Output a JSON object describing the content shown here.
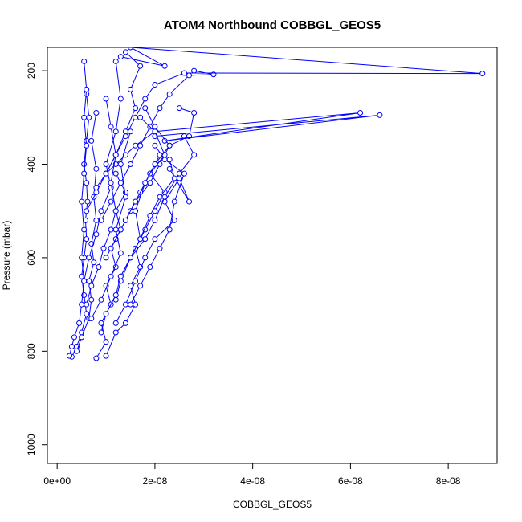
{
  "chart_data": {
    "type": "line",
    "title": "ATOM4 Northbound COBBGL_GEOS5",
    "xlabel": "COBBGL_GEOS5",
    "ylabel": "Pressure (mbar)",
    "xlim": [
      -2e-09,
      9e-08
    ],
    "ylim": [
      1040,
      150
    ],
    "y_reversed": true,
    "x_ticks": [
      0,
      2e-08,
      4e-08,
      6e-08,
      8e-08
    ],
    "x_tick_labels": [
      "0e+00",
      "2e-08",
      "4e-08",
      "6e-08",
      "8e-08"
    ],
    "y_ticks": [
      200,
      400,
      600,
      800,
      1000
    ],
    "y_tick_labels": [
      "200",
      "400",
      "600",
      "800",
      "1000"
    ],
    "grid": false,
    "marker": "open-circle",
    "series_color": "#0000ff",
    "series": [
      {
        "x": [
          3e-09,
          4e-09,
          5e-09,
          6e-09,
          5.5e-09,
          5e-09,
          5.5e-09,
          6e-09,
          5.8e-09,
          6.2e-09,
          6e-09,
          5.5e-09,
          6e-09,
          6.5e-09,
          6e-09
        ],
        "y": [
          812,
          790,
          760,
          720,
          680,
          640,
          600,
          560,
          520,
          480,
          440,
          400,
          350,
          300,
          250
        ]
      },
      {
        "x": [
          4e-09,
          5e-09,
          6.5e-09,
          7e-09,
          6.5e-09,
          7.5e-09,
          7e-09,
          8e-09,
          7.5e-09,
          8e-09,
          7e-09,
          8e-09
        ],
        "y": [
          800,
          770,
          730,
          690,
          650,
          610,
          570,
          520,
          470,
          410,
          350,
          290
        ]
      },
      {
        "x": [
          8e-09,
          1e-08,
          9e-09,
          1.1e-08,
          1e-08,
          1.2e-08,
          1.1e-08,
          1.3e-08,
          1.2e-08,
          1.4e-08,
          1.2e-08
        ],
        "y": [
          815,
          780,
          740,
          700,
          660,
          620,
          580,
          540,
          500,
          460,
          420
        ]
      },
      {
        "x": [
          1e-08,
          1.2e-08,
          1.4e-08,
          1.6e-08,
          1.5e-08,
          1.7e-08,
          1.6e-08,
          1.8e-08,
          2e-08,
          2.2e-08,
          1.9e-08
        ],
        "y": [
          810,
          760,
          740,
          700,
          660,
          620,
          580,
          540,
          500,
          460,
          420
        ]
      },
      {
        "x": [
          1.2e-08,
          1.4e-08,
          1.6e-08,
          1.8e-08,
          2e-08,
          2.4e-08,
          2.2e-08,
          2.5e-08,
          2.7e-08,
          2.3e-08
        ],
        "y": [
          740,
          700,
          650,
          600,
          560,
          520,
          480,
          430,
          480,
          410
        ]
      },
      {
        "x": [
          1.5e-08,
          1.7e-08,
          1.9e-08,
          2.1e-08,
          2.3e-08,
          2.4e-08,
          2.6e-08,
          2.2e-08,
          2e-08
        ],
        "y": [
          700,
          660,
          620,
          580,
          540,
          480,
          420,
          390,
          360
        ]
      },
      {
        "x": [
          1.3e-08,
          1.5e-08,
          1.8e-08,
          2e-08,
          2.2e-08,
          2.5e-08,
          2.8e-08,
          2.6e-08
        ],
        "y": [
          640,
          600,
          560,
          520,
          470,
          420,
          380,
          340
        ]
      },
      {
        "x": [
          1e-08,
          1.2e-08,
          1.4e-08,
          1.6e-08,
          1.9e-08,
          2.1e-08,
          2.3e-08,
          2.7e-08,
          2.8e-08,
          2.5e-08
        ],
        "y": [
          600,
          560,
          520,
          480,
          440,
          400,
          360,
          340,
          290,
          280
        ]
      },
      {
        "x": [
          9e-09,
          1.1e-08,
          1.3e-08,
          1.5e-08,
          1.7e-08,
          1.9e-08,
          2.1e-08,
          2.3e-08,
          2.7e-08,
          3.2e-08,
          2.8e-08
        ],
        "y": [
          520,
          480,
          440,
          400,
          360,
          320,
          280,
          250,
          210,
          208,
          200
        ]
      },
      {
        "x": [
          8e-09,
          1e-08,
          1.2e-08,
          1.4e-08,
          1.6e-08,
          2e-08,
          6.2e-08,
          2.2e-08,
          6.6e-08,
          2e-08
        ],
        "y": [
          450,
          420,
          400,
          380,
          360,
          330,
          290,
          350,
          295,
          340
        ]
      },
      {
        "x": [
          1e-08,
          1.2e-08,
          1.4e-08,
          1.6e-08,
          1.8e-08,
          2e-08,
          2.6e-08,
          8.7e-08,
          1.5e-08,
          2.2e-08,
          1.3e-08
        ],
        "y": [
          420,
          380,
          340,
          300,
          260,
          230,
          205,
          206,
          150,
          190,
          170
        ]
      },
      {
        "x": [
          6e-09,
          8e-09,
          1e-08,
          1.2e-08,
          1.4e-08,
          1.6e-08,
          1.5e-08,
          1.7e-08,
          1.4e-08
        ],
        "y": [
          500,
          460,
          420,
          380,
          330,
          280,
          240,
          190,
          160
        ]
      },
      {
        "x": [
          5.5e-09,
          6.5e-09,
          8e-09,
          9e-09,
          1.1e-08,
          1e-08,
          1.2e-08,
          1.3e-08,
          1.2e-08
        ],
        "y": [
          650,
          600,
          550,
          500,
          450,
          400,
          330,
          260,
          180
        ]
      },
      {
        "x": [
          2.5e-09,
          3e-09,
          3.5e-09,
          4.5e-09,
          5e-09,
          5.5e-09,
          5e-09,
          5.5e-09,
          5e-09,
          5.5e-09,
          6e-09,
          5.5e-09,
          6e-09,
          5.5e-09
        ],
        "y": [
          810,
          790,
          770,
          740,
          700,
          650,
          600,
          540,
          480,
          420,
          360,
          300,
          240,
          180
        ]
      },
      {
        "x": [
          7e-09,
          9e-09,
          1.1e-08,
          1.3e-08,
          1.2e-08,
          1.4e-08,
          1.3e-08,
          1.5e-08
        ],
        "y": [
          730,
          690,
          640,
          590,
          540,
          470,
          400,
          330
        ]
      },
      {
        "x": [
          1.2e-08,
          1.3e-08,
          1.5e-08,
          1.7e-08,
          1.9e-08,
          2.1e-08,
          2.4e-08,
          2.3e-08
        ],
        "y": [
          690,
          650,
          600,
          560,
          510,
          470,
          430,
          390
        ]
      },
      {
        "x": [
          9e-09,
          1e-08,
          1.2e-08,
          1.3e-08,
          1.5e-08,
          1.7e-08,
          1.6e-08,
          1.8e-08,
          2.1e-08
        ],
        "y": [
          760,
          720,
          680,
          640,
          600,
          560,
          500,
          440,
          380
        ]
      },
      {
        "x": [
          6e-09,
          7e-09,
          8.5e-09,
          9.5e-09,
          1.1e-08,
          1.2e-08,
          1.1e-08,
          1.2e-08,
          1.1e-08,
          1e-08
        ],
        "y": [
          700,
          660,
          620,
          580,
          540,
          500,
          440,
          380,
          320,
          260
        ]
      },
      {
        "x": [
          1.1e-08,
          1.3e-08,
          1.5e-08,
          1.7e-08,
          1.9e-08,
          2.2e-08,
          2e-08,
          1.7e-08
        ],
        "y": [
          580,
          540,
          500,
          460,
          420,
          380,
          330,
          300
        ]
      },
      {
        "x": [
          1.4e-08,
          1.6e-08,
          1.8e-08,
          2e-08,
          2.3e-08,
          2e-08,
          1.8e-08
        ],
        "y": [
          520,
          480,
          440,
          400,
          360,
          320,
          280
        ]
      }
    ]
  }
}
